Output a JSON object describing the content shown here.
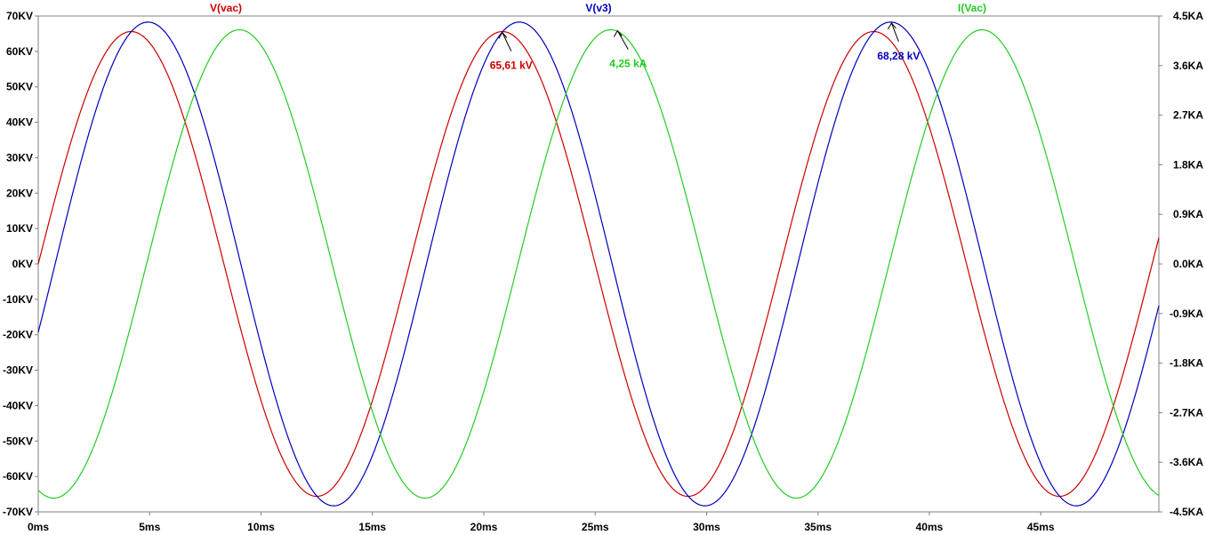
{
  "chart_data": {
    "type": "line",
    "xlabel": "",
    "xlim": [
      0,
      50.3
    ],
    "x_ticks": [
      "0ms",
      "5ms",
      "10ms",
      "15ms",
      "20ms",
      "25ms",
      "30ms",
      "35ms",
      "40ms",
      "45ms"
    ],
    "x_tick_values": [
      0,
      5,
      10,
      15,
      20,
      25,
      30,
      35,
      40,
      45
    ],
    "left_axis": {
      "ylim": [
        -70,
        70
      ],
      "ticks": [
        "70KV",
        "60KV",
        "50KV",
        "40KV",
        "30KV",
        "20KV",
        "10KV",
        "0KV",
        "-10KV",
        "-20KV",
        "-30KV",
        "-40KV",
        "-50KV",
        "-60KV",
        "-70KV"
      ],
      "tick_values": [
        70,
        60,
        50,
        40,
        30,
        20,
        10,
        0,
        -10,
        -20,
        -30,
        -40,
        -50,
        -60,
        -70
      ]
    },
    "right_axis": {
      "ylim": [
        -4.5,
        4.5
      ],
      "ticks": [
        "4.5KA",
        "3.6KA",
        "2.7KA",
        "1.8KA",
        "0.9KA",
        "0.0KA",
        "-0.9KA",
        "-1.8KA",
        "-2.7KA",
        "-3.6KA",
        "-4.5KA"
      ],
      "tick_values": [
        4.5,
        3.6,
        2.7,
        1.8,
        0.9,
        0.0,
        -0.9,
        -1.8,
        -2.7,
        -3.6,
        -4.5
      ]
    },
    "series": [
      {
        "name": "V(vac)",
        "color": "#cc0000",
        "axis": "left",
        "amplitude": 65.61,
        "frequency_hz": 60,
        "phase_deg": 0
      },
      {
        "name": "V(v3)",
        "color": "#0000bb",
        "axis": "left",
        "amplitude": 68.28,
        "frequency_hz": 60,
        "phase_deg": -16.4
      },
      {
        "name": "I(Vac)",
        "color": "#22cc22",
        "axis": "right",
        "amplitude": 4.25,
        "frequency_hz": 60,
        "phase_deg": -105
      }
    ],
    "annotations": [
      {
        "text": "65,61 kV",
        "series": "V(vac)",
        "x": 20.83,
        "y": 65.61,
        "color": "#cc0000"
      },
      {
        "text": "4,25 kA",
        "series": "I(Vac)",
        "x": 26.0,
        "y": 4.25,
        "color": "#22cc22"
      },
      {
        "text": "68,28 kV",
        "series": "V(v3)",
        "x": 38.3,
        "y": 68.28,
        "color": "#0000bb"
      }
    ],
    "grid": false,
    "legend": "top"
  }
}
